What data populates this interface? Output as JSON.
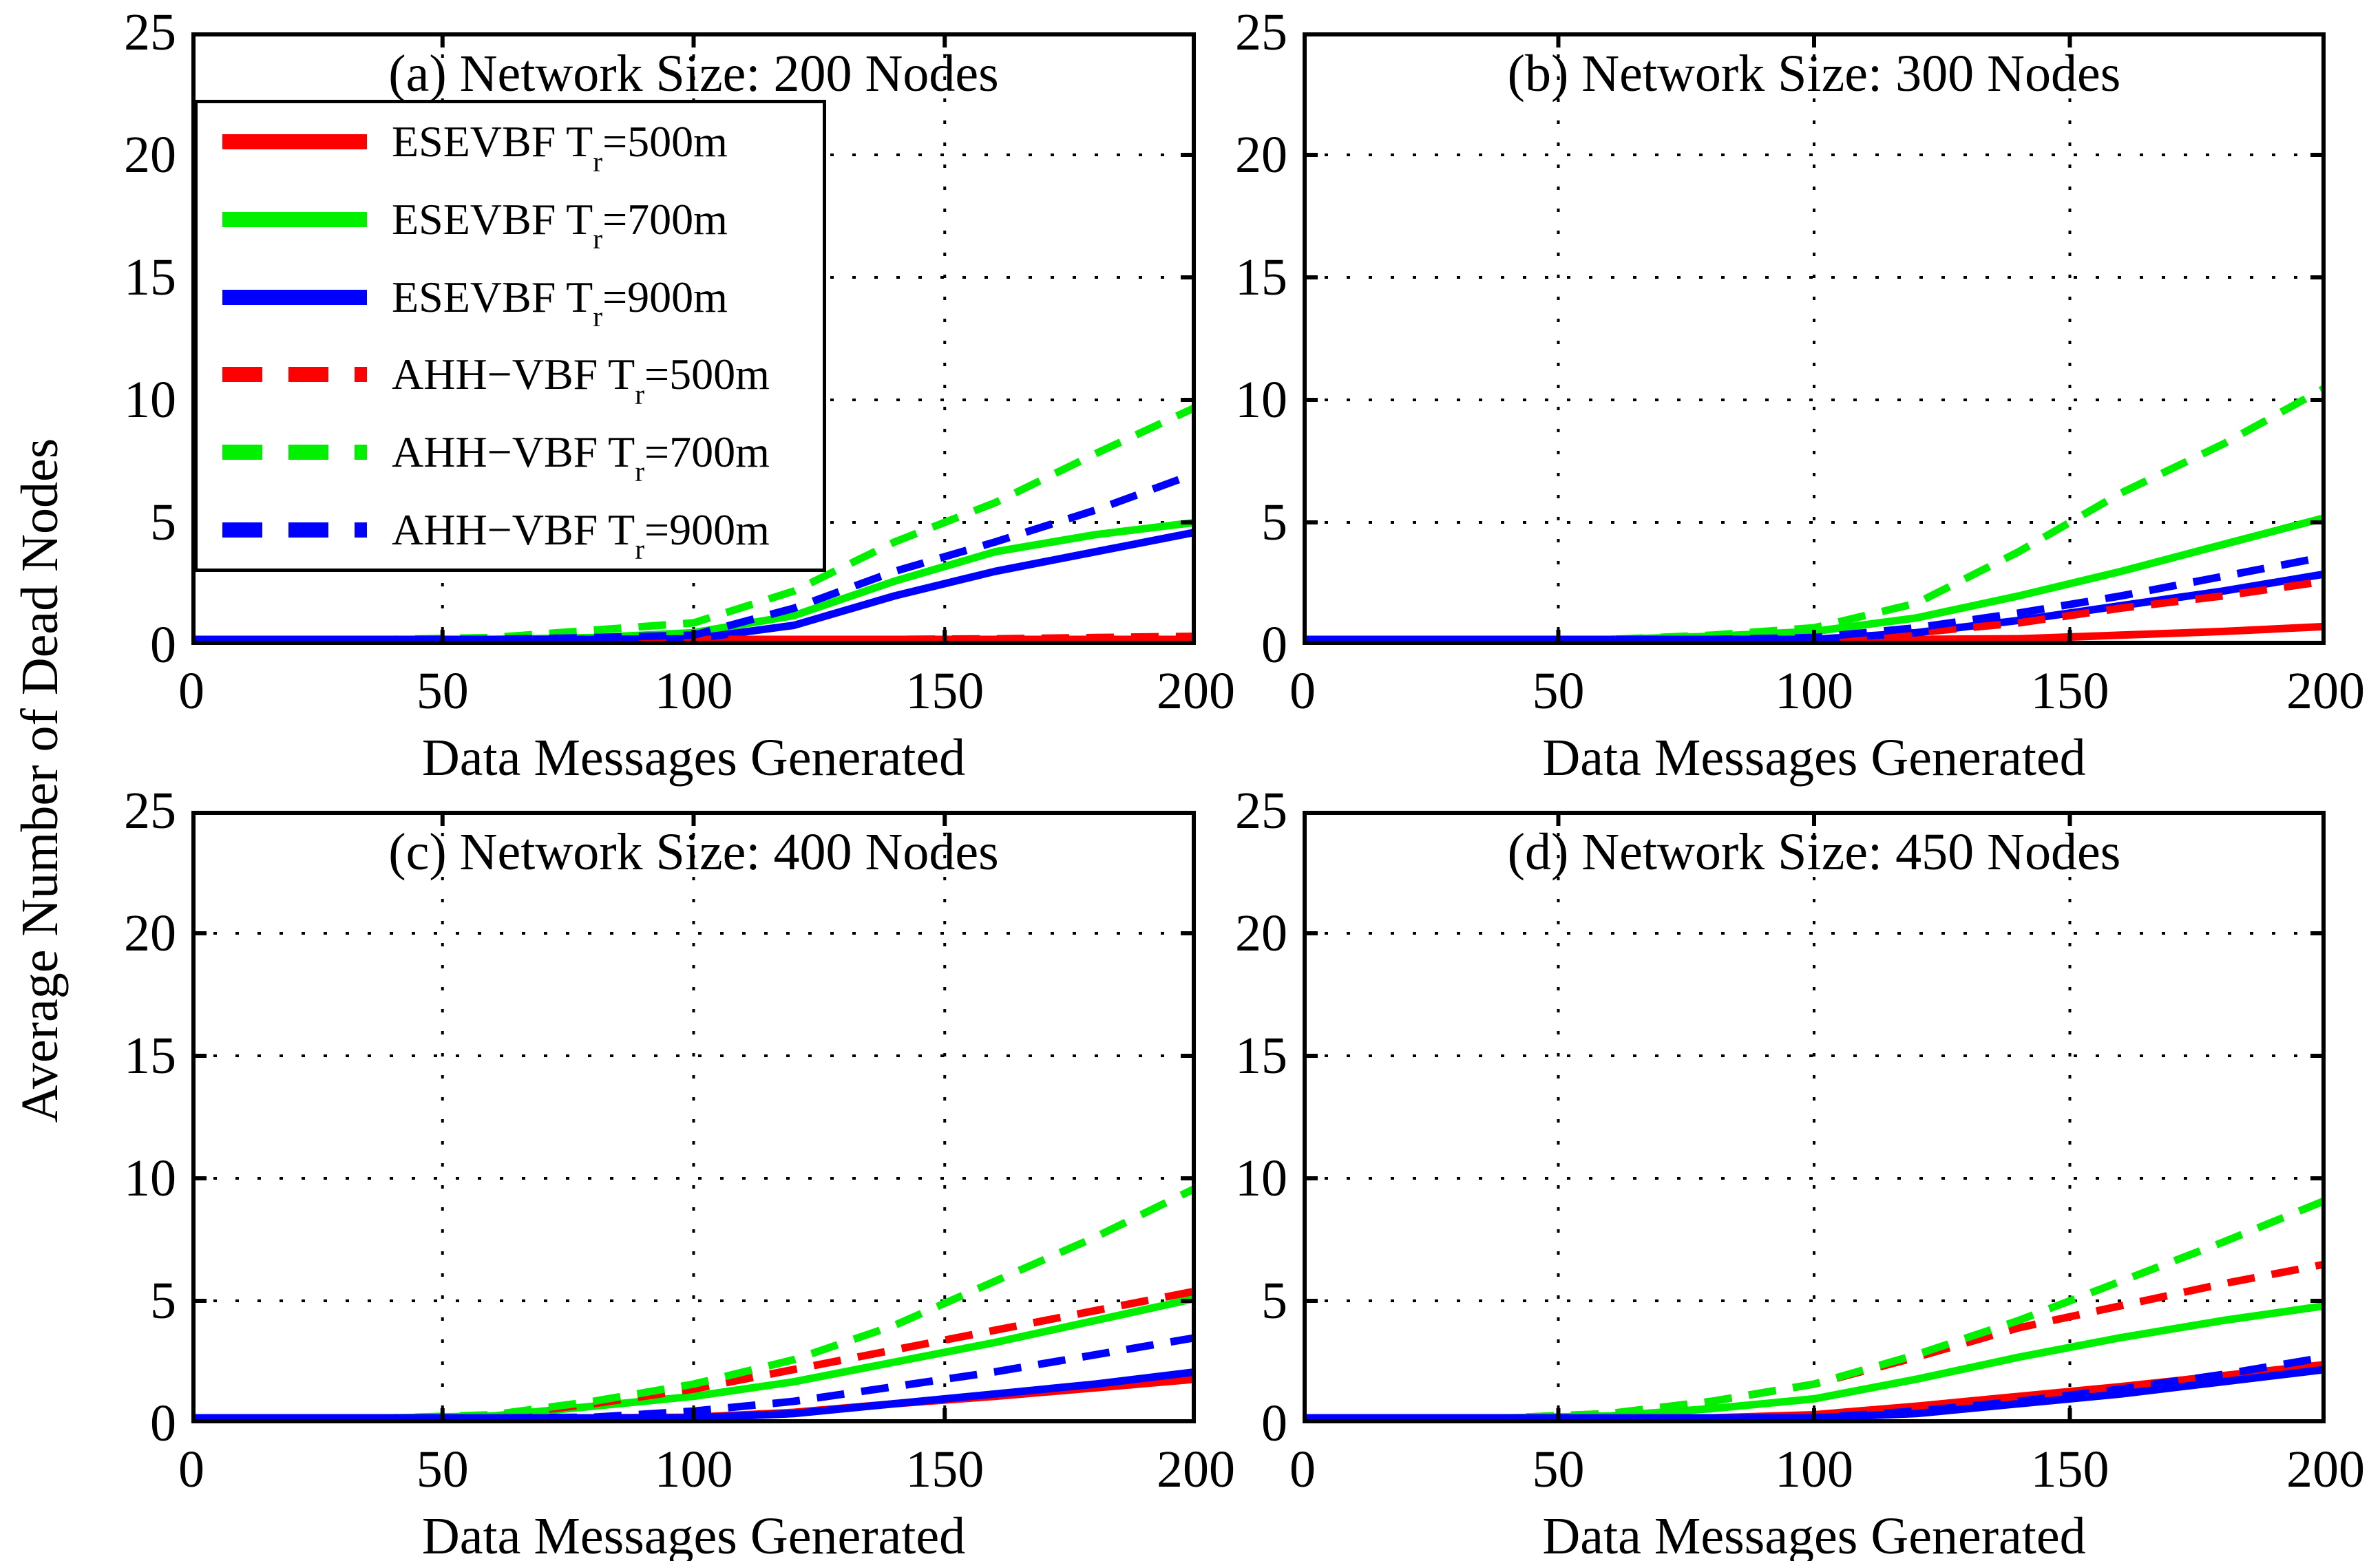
{
  "shared": {
    "ylabel": "Average Number of Dead Nodes",
    "xlabel": "Data Messages Generated",
    "x_tick_labels": [
      "0",
      "50",
      "100",
      "150",
      "200"
    ],
    "y_tick_labels": [
      "0",
      "5",
      "10",
      "15",
      "20",
      "25"
    ],
    "colors": {
      "red": "#ff0000",
      "green": "#00f000",
      "blue": "#0000ff",
      "axis": "#000000"
    }
  },
  "legend": {
    "entries": [
      {
        "pre": "ESEVBF T",
        "sub": "r",
        "post": "=500m",
        "color": "red",
        "style": "solid"
      },
      {
        "pre": "ESEVBF T",
        "sub": "r",
        "post": "=700m",
        "color": "green",
        "style": "solid"
      },
      {
        "pre": "ESEVBF T",
        "sub": "r",
        "post": "=900m",
        "color": "blue",
        "style": "solid"
      },
      {
        "pre": "AHH−VBF T",
        "sub": "r",
        "post": "=500m",
        "color": "red",
        "style": "dashed"
      },
      {
        "pre": "AHH−VBF T",
        "sub": "r",
        "post": "=700m",
        "color": "green",
        "style": "dashed"
      },
      {
        "pre": "AHH−VBF T",
        "sub": "r",
        "post": "=900m",
        "color": "blue",
        "style": "dashed"
      }
    ]
  },
  "chart_data": [
    {
      "type": "line",
      "title": "(a) Network Size: 200 Nodes",
      "xlabel": "Data Messages Generated",
      "ylabel": "Average Number of Dead Nodes",
      "xlim": [
        0,
        200
      ],
      "ylim": [
        0,
        25
      ],
      "x_ticks": [
        0,
        50,
        100,
        150,
        200
      ],
      "y_ticks": [
        0,
        5,
        10,
        15,
        20,
        25
      ],
      "grid": "dotted",
      "legend_position": "upper-left",
      "x": [
        0,
        20,
        40,
        60,
        80,
        100,
        120,
        140,
        160,
        180,
        200
      ],
      "series": [
        {
          "name": "ESEVBF Tr=500m",
          "color": "red",
          "dashed": false,
          "values": [
            0,
            0,
            0,
            0,
            0.05,
            0.05,
            0.05,
            0.05,
            0.1,
            0.1,
            0.15
          ]
        },
        {
          "name": "ESEVBF Tr=700m",
          "color": "green",
          "dashed": false,
          "values": [
            0,
            0,
            0.05,
            0.15,
            0.3,
            0.5,
            1.2,
            2.6,
            3.8,
            4.5,
            5.0
          ]
        },
        {
          "name": "ESEVBF Tr=900m",
          "color": "blue",
          "dashed": false,
          "values": [
            0,
            0,
            0,
            0.05,
            0.15,
            0.25,
            0.8,
            2.0,
            3.0,
            3.8,
            4.6
          ]
        },
        {
          "name": "AHH-VBF Tr=500m",
          "color": "red",
          "dashed": true,
          "values": [
            0,
            0,
            0,
            0,
            0.05,
            0.1,
            0.15,
            0.2,
            0.25,
            0.3,
            0.35
          ]
        },
        {
          "name": "AHH-VBF Tr=700m",
          "color": "green",
          "dashed": true,
          "values": [
            0,
            0,
            0.1,
            0.3,
            0.6,
            0.9,
            2.2,
            4.2,
            5.8,
            7.8,
            9.7
          ]
        },
        {
          "name": "AHH-VBF Tr=900m",
          "color": "blue",
          "dashed": true,
          "values": [
            0,
            0,
            0,
            0.1,
            0.3,
            0.4,
            1.5,
            3.0,
            4.2,
            5.5,
            7.0
          ]
        }
      ]
    },
    {
      "type": "line",
      "title": "(b) Network Size: 300 Nodes",
      "xlabel": "Data Messages Generated",
      "ylabel": "Average Number of Dead Nodes",
      "xlim": [
        0,
        200
      ],
      "ylim": [
        0,
        25
      ],
      "x_ticks": [
        0,
        50,
        100,
        150,
        200
      ],
      "y_ticks": [
        0,
        5,
        10,
        15,
        20,
        25
      ],
      "grid": "dotted",
      "x": [
        0,
        20,
        40,
        60,
        80,
        100,
        120,
        140,
        160,
        180,
        200
      ],
      "series": [
        {
          "name": "ESEVBF Tr=500m",
          "color": "red",
          "dashed": false,
          "values": [
            0,
            0,
            0,
            0,
            0.05,
            0.1,
            0.15,
            0.25,
            0.4,
            0.55,
            0.75
          ]
        },
        {
          "name": "ESEVBF Tr=700m",
          "color": "green",
          "dashed": false,
          "values": [
            0,
            0,
            0.05,
            0.2,
            0.35,
            0.55,
            1.1,
            2.0,
            3.0,
            4.1,
            5.2
          ]
        },
        {
          "name": "ESEVBF Tr=900m",
          "color": "blue",
          "dashed": false,
          "values": [
            0,
            0,
            0,
            0.05,
            0.1,
            0.2,
            0.5,
            1.0,
            1.6,
            2.2,
            2.9
          ]
        },
        {
          "name": "AHH-VBF Tr=500m",
          "color": "red",
          "dashed": true,
          "values": [
            0,
            0,
            0,
            0.05,
            0.1,
            0.2,
            0.5,
            0.9,
            1.5,
            2.0,
            2.6
          ]
        },
        {
          "name": "AHH-VBF Tr=700m",
          "color": "green",
          "dashed": true,
          "values": [
            0,
            0,
            0.05,
            0.2,
            0.4,
            0.7,
            1.7,
            3.8,
            6.2,
            8.2,
            10.5
          ]
        },
        {
          "name": "AHH-VBF Tr=900m",
          "color": "blue",
          "dashed": true,
          "values": [
            0,
            0,
            0,
            0.05,
            0.15,
            0.3,
            0.7,
            1.3,
            2.0,
            2.8,
            3.6
          ]
        }
      ]
    },
    {
      "type": "line",
      "title": "(c) Network Size: 400 Nodes",
      "xlabel": "Data Messages Generated",
      "ylabel": "Average Number of Dead Nodes",
      "xlim": [
        0,
        200
      ],
      "ylim": [
        0,
        25
      ],
      "x_ticks": [
        0,
        50,
        100,
        150,
        200
      ],
      "y_ticks": [
        0,
        5,
        10,
        15,
        20,
        25
      ],
      "grid": "dotted",
      "x": [
        0,
        20,
        40,
        60,
        80,
        100,
        120,
        140,
        160,
        180,
        200
      ],
      "series": [
        {
          "name": "ESEVBF Tr=500m",
          "color": "red",
          "dashed": false,
          "values": [
            0,
            0,
            0,
            0.05,
            0.15,
            0.25,
            0.45,
            0.8,
            1.1,
            1.45,
            1.8
          ]
        },
        {
          "name": "ESEVBF Tr=700m",
          "color": "green",
          "dashed": false,
          "values": [
            0,
            0,
            0.05,
            0.3,
            0.7,
            1.1,
            1.7,
            2.5,
            3.3,
            4.2,
            5.1
          ]
        },
        {
          "name": "ESEVBF Tr=900m",
          "color": "blue",
          "dashed": false,
          "values": [
            0,
            0,
            0,
            0.05,
            0.1,
            0.2,
            0.4,
            0.8,
            1.2,
            1.6,
            2.1
          ]
        },
        {
          "name": "AHH-VBF Tr=500m",
          "color": "red",
          "dashed": true,
          "values": [
            0,
            0,
            0.05,
            0.3,
            0.8,
            1.4,
            2.2,
            3.0,
            3.8,
            4.6,
            5.4
          ]
        },
        {
          "name": "AHH-VBF Tr=700m",
          "color": "green",
          "dashed": true,
          "values": [
            0,
            0,
            0.05,
            0.35,
            0.9,
            1.6,
            2.6,
            4.0,
            5.8,
            7.6,
            9.6
          ]
        },
        {
          "name": "AHH-VBF Tr=900m",
          "color": "blue",
          "dashed": true,
          "values": [
            0,
            0,
            0,
            0.1,
            0.25,
            0.5,
            0.9,
            1.5,
            2.1,
            2.8,
            3.5
          ]
        }
      ]
    },
    {
      "type": "line",
      "title": "(d) Network Size: 450 Nodes",
      "xlabel": "Data Messages Generated",
      "ylabel": "Average Number of Dead Nodes",
      "xlim": [
        0,
        200
      ],
      "ylim": [
        0,
        25
      ],
      "x_ticks": [
        0,
        50,
        100,
        150,
        200
      ],
      "y_ticks": [
        0,
        5,
        10,
        15,
        20,
        25
      ],
      "grid": "dotted",
      "x": [
        0,
        20,
        40,
        60,
        80,
        100,
        120,
        140,
        160,
        180,
        200
      ],
      "series": [
        {
          "name": "ESEVBF Tr=500m",
          "color": "red",
          "dashed": false,
          "values": [
            0,
            0,
            0,
            0.1,
            0.2,
            0.35,
            0.7,
            1.1,
            1.5,
            1.95,
            2.4
          ]
        },
        {
          "name": "ESEVBF Tr=700m",
          "color": "green",
          "dashed": false,
          "values": [
            0,
            0,
            0.05,
            0.3,
            0.6,
            1.0,
            1.8,
            2.7,
            3.5,
            4.2,
            4.8
          ]
        },
        {
          "name": "ESEVBF Tr=900m",
          "color": "blue",
          "dashed": false,
          "values": [
            0,
            0,
            0,
            0.05,
            0.1,
            0.15,
            0.4,
            0.8,
            1.2,
            1.7,
            2.2
          ]
        },
        {
          "name": "AHH-VBF Tr=500m",
          "color": "red",
          "dashed": true,
          "values": [
            0,
            0,
            0.05,
            0.4,
            0.9,
            1.6,
            2.7,
            3.9,
            4.8,
            5.7,
            6.5
          ]
        },
        {
          "name": "AHH-VBF Tr=700m",
          "color": "green",
          "dashed": true,
          "values": [
            0,
            0,
            0.05,
            0.4,
            0.9,
            1.6,
            2.8,
            4.2,
            5.8,
            7.4,
            9.1
          ]
        },
        {
          "name": "AHH-VBF Tr=900m",
          "color": "blue",
          "dashed": true,
          "values": [
            0,
            0,
            0,
            0.05,
            0.1,
            0.2,
            0.5,
            0.9,
            1.4,
            2.0,
            2.7
          ]
        }
      ]
    }
  ]
}
